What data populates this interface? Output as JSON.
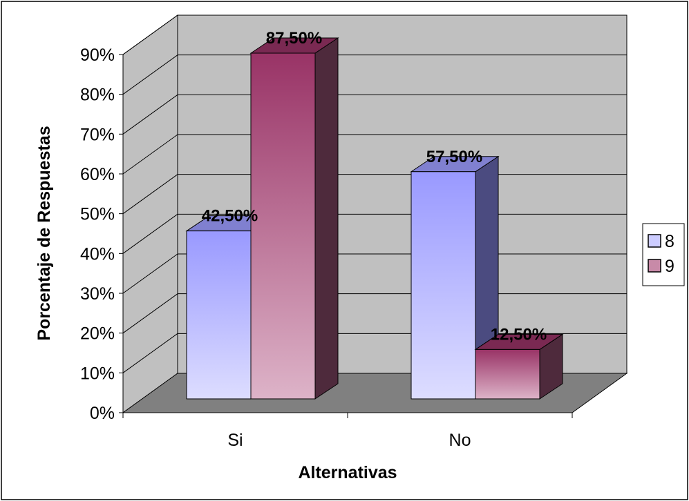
{
  "chart_data": {
    "type": "bar",
    "title": "",
    "xlabel": "Alternativas",
    "ylabel": "Porcentaje de Respuestas",
    "categories": [
      "Si",
      "No"
    ],
    "series": [
      {
        "name": "8",
        "values": [
          42.5,
          57.5
        ],
        "labels": [
          "42,50%",
          "57,50%"
        ],
        "color": "#9999ff"
      },
      {
        "name": "9",
        "values": [
          87.5,
          12.5
        ],
        "labels": [
          "87,50%",
          "12,50%"
        ],
        "color": "#993366"
      }
    ],
    "ylim": [
      0,
      90
    ],
    "yticks": [
      "0%",
      "10%",
      "20%",
      "30%",
      "40%",
      "50%",
      "60%",
      "70%",
      "80%",
      "90%"
    ],
    "grid": true,
    "legend": "right",
    "three_d": true,
    "colors": {
      "wall": "#c0c0c0",
      "floor": "#808080",
      "gridline": "#000000"
    }
  }
}
